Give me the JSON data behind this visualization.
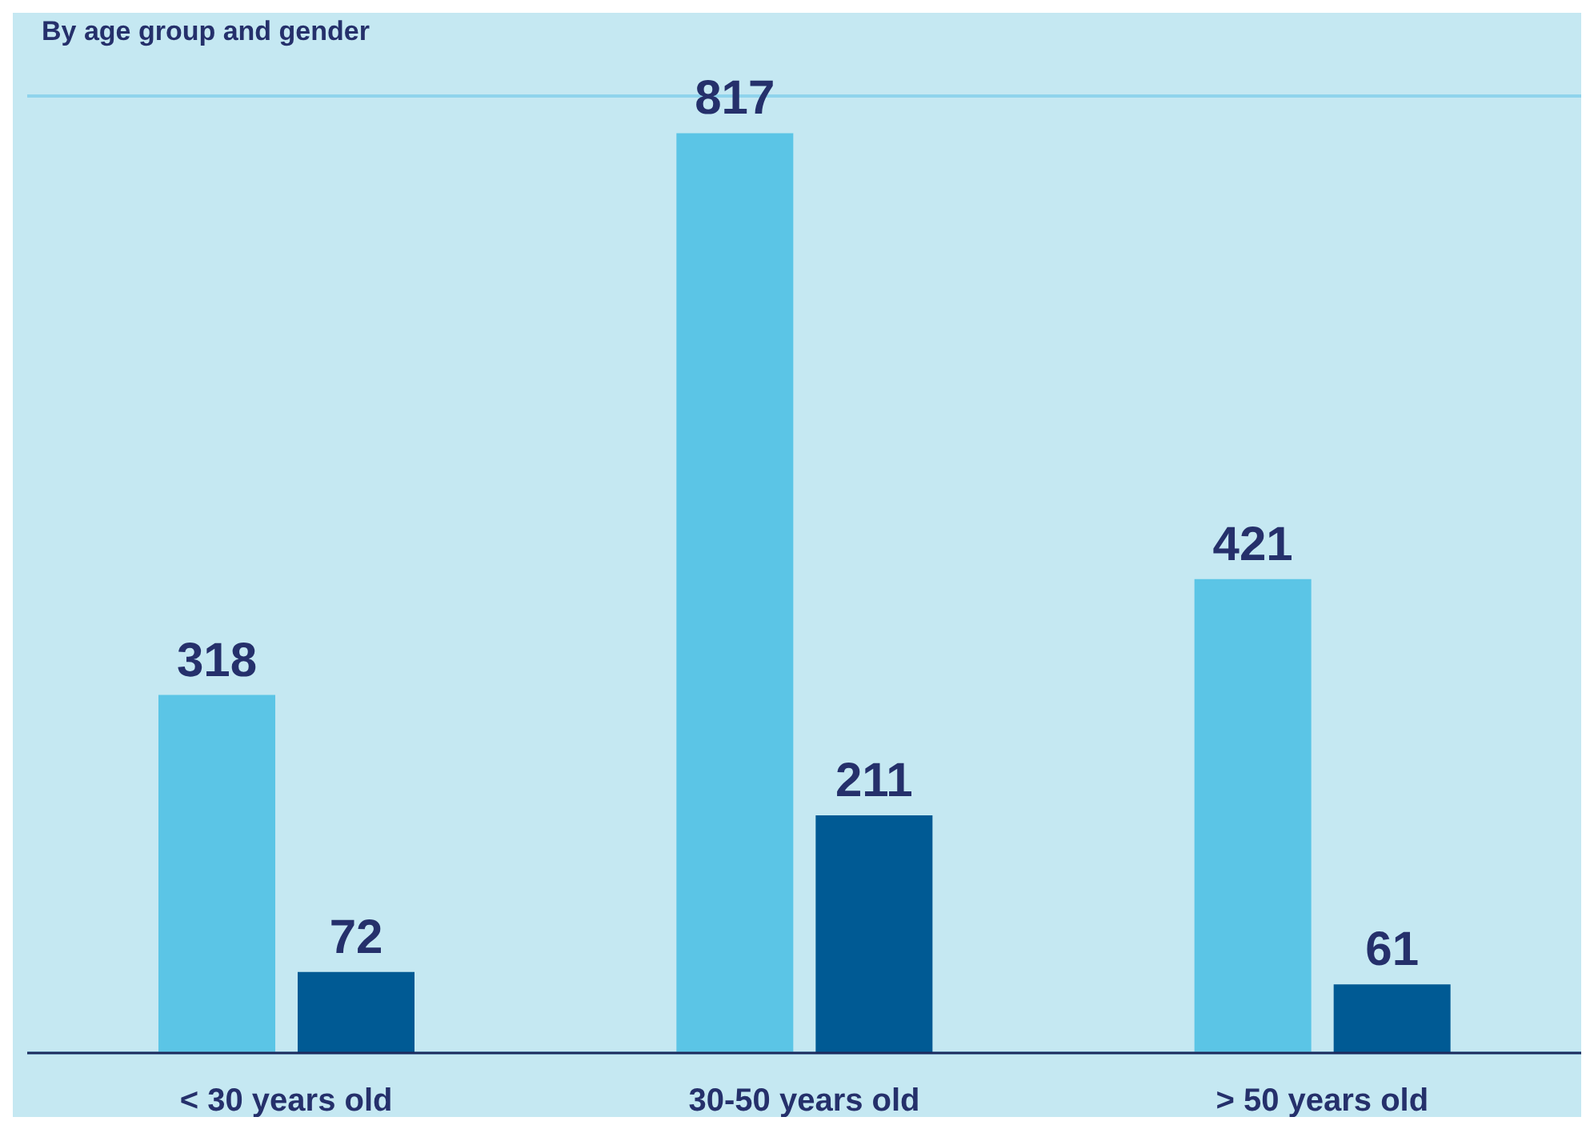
{
  "chart_data": {
    "type": "bar",
    "subtitle": "By age group and gender",
    "categories": [
      "< 30 years old",
      "30-50 years old",
      "> 50 years old"
    ],
    "series": [
      {
        "color": "#5bc5e6",
        "values": [
          318,
          817,
          421
        ]
      },
      {
        "color": "#005a94",
        "values": [
          72,
          211,
          61
        ]
      }
    ],
    "ylim": [
      0,
      850
    ],
    "grid": "y",
    "tick_labels": "x",
    "data_labels": true
  }
}
